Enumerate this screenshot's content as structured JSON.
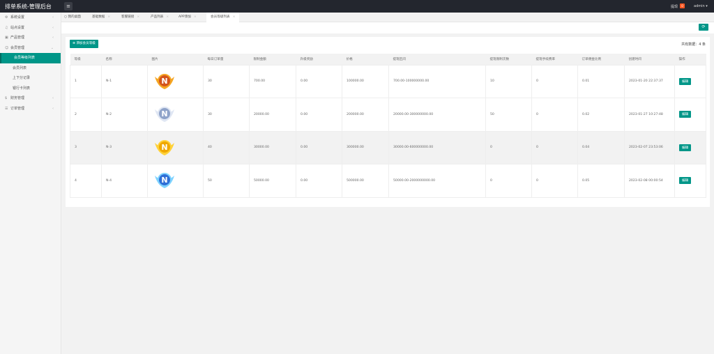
{
  "app": {
    "title": "排单系统-管理后台",
    "withdraw_label": "提现",
    "withdraw_count": "0",
    "user": "admin"
  },
  "sidebar": [
    {
      "label": "系统设置",
      "icon": "gear-icon",
      "expandable": true
    },
    {
      "label": "站点设置",
      "icon": "bell-icon",
      "expandable": true
    },
    {
      "label": "产品管理",
      "icon": "box-icon",
      "expandable": true
    },
    {
      "label": "会员管理",
      "icon": "user-icon",
      "expandable": true,
      "expanded": true,
      "children": [
        {
          "label": "会员等级列表",
          "active": true
        },
        {
          "label": "会员列表"
        },
        {
          "label": "上下分记录"
        },
        {
          "label": "银行卡列表"
        }
      ]
    },
    {
      "label": "财务管理",
      "icon": "money-icon",
      "expandable": true
    },
    {
      "label": "订单管理",
      "icon": "order-icon",
      "expandable": true
    }
  ],
  "tabs": [
    {
      "label": "我的桌面",
      "home": true
    },
    {
      "label": "基础数据"
    },
    {
      "label": "客服链接"
    },
    {
      "label": "产品列表"
    },
    {
      "label": "APP添加"
    },
    {
      "label": "会员等级列表",
      "active": true
    }
  ],
  "toolbar": {
    "add_label": "添加会员等级",
    "total_label": "共有数据：",
    "total": "4",
    "total_unit": "条"
  },
  "table": {
    "headers": [
      "等级",
      "名称",
      "图片",
      "每日订单量",
      "限制金额",
      "升级奖励",
      "价格",
      "提现区间",
      "提现限制次数",
      "提现手续费率",
      "订单佣金比例",
      "创建时间",
      "操作"
    ],
    "rows": [
      {
        "level": "1",
        "name": "N-1",
        "medal": "orange",
        "orders": "30",
        "limit": "700.00",
        "reward": "0.00",
        "price": "100000.00",
        "range": "700.00-100000000.00",
        "times": "10",
        "fee": "0",
        "commission": "0.01",
        "created": "2023-01-20 22:37:37",
        "action": "编辑"
      },
      {
        "level": "2",
        "name": "N-2",
        "medal": "silver",
        "orders": "30",
        "limit": "20000.00",
        "reward": "0.00",
        "price": "200000.00",
        "range": "20000.00-300000000.00",
        "times": "50",
        "fee": "0",
        "commission": "0.02",
        "created": "2023-01-27 10:27:48",
        "action": "编辑"
      },
      {
        "level": "3",
        "name": "N-3",
        "medal": "gold",
        "orders": "40",
        "limit": "30000.00",
        "reward": "0.00",
        "price": "300000.00",
        "range": "30000.00-600000000.00",
        "times": "0",
        "fee": "0",
        "commission": "0.04",
        "created": "2023-02-07 23:53:06",
        "action": "编辑"
      },
      {
        "level": "4",
        "name": "N-4",
        "medal": "blue",
        "orders": "50",
        "limit": "50000.00",
        "reward": "0.00",
        "price": "500000.00",
        "range": "50000.00-2000000000.00",
        "times": "0",
        "fee": "0",
        "commission": "0.05",
        "created": "2023-02-08 00:00:54",
        "action": "编辑"
      }
    ]
  },
  "colors": {
    "accent": "#009688",
    "topbar": "#23262e",
    "badge": "#ff5722"
  }
}
